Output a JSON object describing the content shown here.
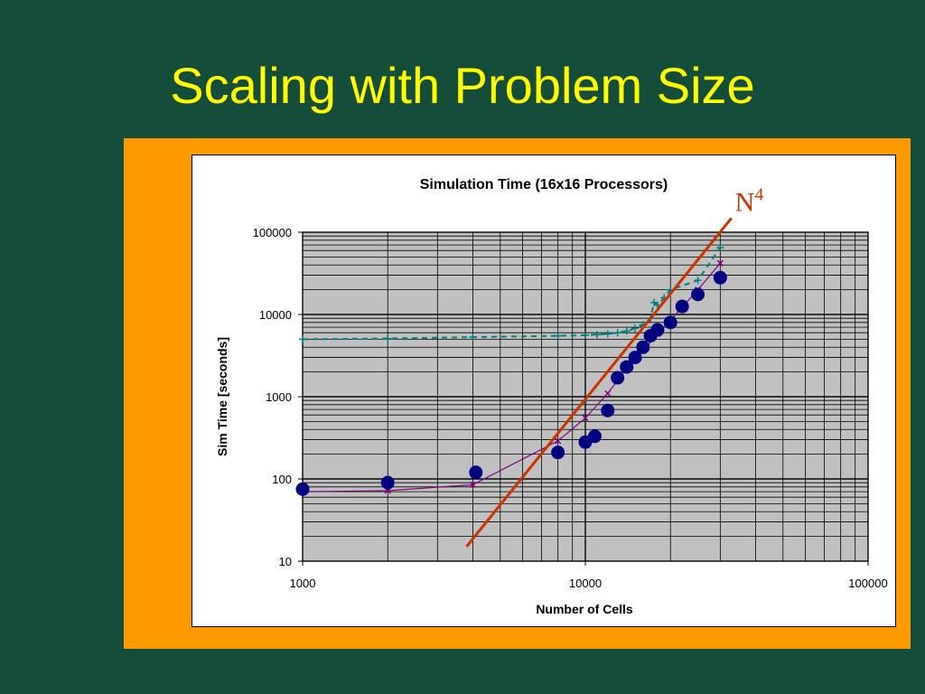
{
  "slide": {
    "title": "Scaling with Problem Size"
  },
  "annotation": {
    "label": "N",
    "exponent": "4"
  },
  "colors": {
    "background": "#144e3a",
    "title": "#ffff00",
    "panel": "#ff9900",
    "plot_bg": "#c0c0c0",
    "series_measured": "#000080",
    "series_line": "#800080",
    "series_dashed": "#008080",
    "fit_line": "#cc3300"
  },
  "chart_data": {
    "type": "scatter",
    "title": "Simulation Time (16x16 Processors)",
    "xlabel": "Number of Cells",
    "ylabel": "Sim Time [seconds]",
    "xscale": "log",
    "yscale": "log",
    "xlim": [
      1000,
      100000
    ],
    "ylim": [
      10,
      100000
    ],
    "x_ticks": [
      "1000",
      "10000",
      "100000"
    ],
    "y_ticks": [
      "10",
      "100",
      "1000",
      "10000",
      "100000"
    ],
    "grid": true,
    "legend": "none",
    "series": [
      {
        "marker": "circle",
        "x": [
          1000,
          2000,
          4100,
          8000,
          10000,
          10800,
          12000,
          13000,
          14000,
          15000,
          16000,
          17000,
          18000,
          20000,
          22000,
          25000,
          30000
        ],
        "y": [
          75,
          90,
          120,
          210,
          280,
          330,
          680,
          1700,
          2300,
          3000,
          4000,
          5500,
          6500,
          8000,
          12500,
          17500,
          28000
        ]
      },
      {
        "marker": "x-line",
        "x": [
          1000,
          2000,
          4000,
          8000,
          10000,
          12000,
          14000,
          16000,
          18000,
          20000,
          25000,
          30000
        ],
        "y": [
          70,
          72,
          85,
          290,
          550,
          1100,
          2200,
          3600,
          5800,
          8500,
          20000,
          42000
        ]
      },
      {
        "marker": "plus-dashed",
        "x": [
          1000,
          2000,
          4000,
          8000,
          10000,
          11000,
          12000,
          13000,
          14000,
          15000,
          16000,
          17000,
          17500,
          18000,
          19000,
          20000,
          25000,
          30000
        ],
        "y": [
          5000,
          5100,
          5300,
          5500,
          5600,
          5700,
          5800,
          6000,
          6300,
          6800,
          7500,
          9000,
          14000,
          13000,
          16000,
          20000,
          26000,
          65000
        ]
      }
    ],
    "fit_line": {
      "label": "N4",
      "x": [
        3800,
        28000
      ],
      "y": [
        15,
        75000
      ]
    }
  }
}
